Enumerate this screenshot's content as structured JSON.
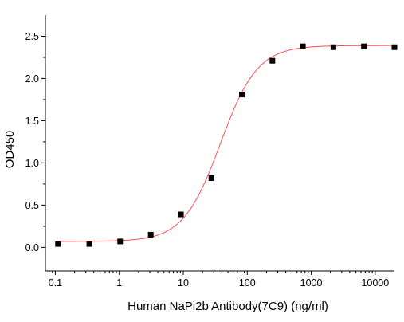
{
  "chart_data": {
    "type": "scatter",
    "xlabel": "Human NaPi2b Antibody(7C9) (ng/ml)",
    "ylabel": "OD450",
    "xscale": "log",
    "xlim": [
      0.07,
      20000
    ],
    "ylim": [
      -0.28,
      2.75
    ],
    "xticks": [
      0.1,
      1,
      10,
      100,
      1000,
      10000
    ],
    "xtick_labels": [
      "0.1",
      "1",
      "10",
      "100",
      "1000",
      "10000"
    ],
    "yticks": [
      0.0,
      0.5,
      1.0,
      1.5,
      2.0,
      2.5
    ],
    "ytick_labels": [
      "0.0",
      "0.5",
      "1.0",
      "1.5",
      "2.0",
      "2.5"
    ],
    "grid": false,
    "legend": "none",
    "series": [
      {
        "kind": "points",
        "marker": "square",
        "color": "#000000",
        "x": [
          0.11,
          0.34,
          1.03,
          3.1,
          9.2,
          27.5,
          82.5,
          247,
          741,
          2222,
          6667,
          20000
        ],
        "y": [
          0.04,
          0.04,
          0.07,
          0.15,
          0.39,
          0.82,
          1.81,
          2.21,
          2.38,
          2.37,
          2.38,
          2.37
        ]
      },
      {
        "kind": "fit-curve",
        "color": "#ff4d4d",
        "model": "4PL",
        "bottom": 0.07,
        "top": 2.39,
        "ec50": 38,
        "hill": 1.5
      }
    ]
  }
}
